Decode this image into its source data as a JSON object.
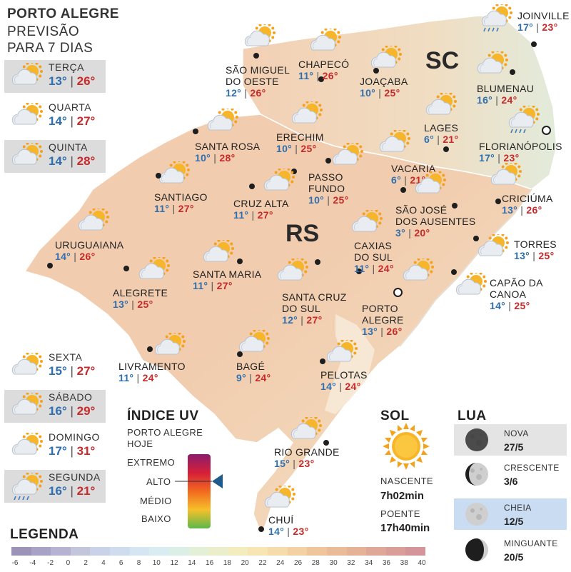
{
  "title_lines": [
    "PORTO ALEGRE",
    "PREVISÃO",
    "PARA 7 DIAS"
  ],
  "forecast": [
    {
      "day": "TERÇA",
      "min": "13°",
      "max": "26°",
      "icon": "partly-cloudy-icon"
    },
    {
      "day": "QUARTA",
      "min": "14°",
      "max": "27°",
      "icon": "partly-cloudy-icon"
    },
    {
      "day": "QUINTA",
      "min": "14°",
      "max": "28°",
      "icon": "partly-cloudy-icon"
    },
    {
      "day": "SEXTA",
      "min": "15°",
      "max": "27°",
      "icon": "partly-cloudy-icon"
    },
    {
      "day": "SÁBADO",
      "min": "16°",
      "max": "29°",
      "icon": "partly-cloudy-icon"
    },
    {
      "day": "DOMINGO",
      "min": "17°",
      "max": "31°",
      "icon": "partly-cloudy-icon"
    },
    {
      "day": "SEGUNDA",
      "min": "16°",
      "max": "21°",
      "icon": "rain-sun-icon"
    }
  ],
  "states": {
    "rs": "RS",
    "sc": "SC"
  },
  "cities": [
    {
      "name": "SÃO MIGUEL DO OESTE",
      "l1": "SÃO MIGUEL",
      "l2": "DO OESTE",
      "min": "12°",
      "max": "26°"
    },
    {
      "name": "CHAPECÓ",
      "l1": "CHAPECÓ",
      "min": "11°",
      "max": "26°"
    },
    {
      "name": "JOAÇABA",
      "l1": "JOAÇABA",
      "min": "10°",
      "max": "25°"
    },
    {
      "name": "JOINVILLE",
      "l1": "JOINVILLE",
      "min": "17°",
      "max": "23°"
    },
    {
      "name": "BLUMENAU",
      "l1": "BLUMENAU",
      "min": "16°",
      "max": "24°"
    },
    {
      "name": "LAGES",
      "l1": "LAGES",
      "min": "6°",
      "max": "21°"
    },
    {
      "name": "FLORIANÓPOLIS",
      "l1": "FLORIANÓPOLIS",
      "min": "17°",
      "max": "23°"
    },
    {
      "name": "SANTA ROSA",
      "l1": "SANTA ROSA",
      "min": "10°",
      "max": "28°"
    },
    {
      "name": "ERECHIM",
      "l1": "ERECHIM",
      "min": "10°",
      "max": "25°"
    },
    {
      "name": "VACARIA",
      "l1": "VACARIA",
      "min": "6°",
      "max": "21°"
    },
    {
      "name": "PASSO FUNDO",
      "l1": "PASSO",
      "l2": "FUNDO",
      "min": "10°",
      "max": "25°"
    },
    {
      "name": "SANTIAGO",
      "l1": "SANTIAGO",
      "min": "11°",
      "max": "27°"
    },
    {
      "name": "CRUZ ALTA",
      "l1": "CRUZ ALTA",
      "min": "11°",
      "max": "27°"
    },
    {
      "name": "CRICIÚMA",
      "l1": "CRICIÚMA",
      "min": "13°",
      "max": "26°"
    },
    {
      "name": "SÃO JOSÉ DOS AUSENTES",
      "l1": "SÃO JOSÉ",
      "l2": "DOS AUSENTES",
      "min": "3°",
      "max": "20°"
    },
    {
      "name": "URUGUAIANA",
      "l1": "URUGUAIANA",
      "min": "14°",
      "max": "26°"
    },
    {
      "name": "TORRES",
      "l1": "TORRES",
      "min": "13°",
      "max": "25°"
    },
    {
      "name": "CAXIAS DO SUL",
      "l1": "CAXIAS",
      "l2": "DO SUL",
      "min": "11°",
      "max": "24°"
    },
    {
      "name": "SANTA MARIA",
      "l1": "SANTA MARIA",
      "min": "11°",
      "max": "27°"
    },
    {
      "name": "ALEGRETE",
      "l1": "ALEGRETE",
      "min": "13°",
      "max": "25°"
    },
    {
      "name": "CAPÃO DA CANOA",
      "l1": "CAPÃO DA",
      "l2": "CANOA",
      "min": "14°",
      "max": "25°"
    },
    {
      "name": "SANTA CRUZ DO SUL",
      "l1": "SANTA CRUZ",
      "l2": "DO SUL",
      "min": "12°",
      "max": "27°"
    },
    {
      "name": "PORTO ALEGRE",
      "l1": "PORTO",
      "l2": "ALEGRE",
      "min": "13°",
      "max": "26°"
    },
    {
      "name": "LIVRAMENTO",
      "l1": "LIVRAMENTO",
      "min": "11°",
      "max": "24°"
    },
    {
      "name": "BAGÉ",
      "l1": "BAGÉ",
      "min": "9°",
      "max": "24°"
    },
    {
      "name": "PELOTAS",
      "l1": "PELOTAS",
      "min": "14°",
      "max": "24°"
    },
    {
      "name": "RIO GRANDE",
      "l1": "RIO GRANDE",
      "min": "15°",
      "max": "23°"
    },
    {
      "name": "CHUÍ",
      "l1": "CHUÍ",
      "min": "14°",
      "max": "23°"
    }
  ],
  "uv": {
    "title": "ÍNDICE UV",
    "subtitle_1": "PORTO ALEGRE",
    "subtitle_2": "HOJE",
    "levels": [
      "EXTREMO",
      "ALTO",
      "MÉDIO",
      "BAIXO"
    ],
    "current": "ALTO",
    "current_fraction": 0.78
  },
  "sun": {
    "title": "SOL",
    "sunrise_label": "NASCENTE",
    "sunrise": "7h02min",
    "sunset_label": "POENTE",
    "sunset": "17h40min"
  },
  "moon": {
    "title": "LUA",
    "phases": [
      {
        "name": "NOVA",
        "date": "27/5",
        "icon": "new-moon-icon"
      },
      {
        "name": "CRESCENTE",
        "date": "3/6",
        "icon": "crescent-moon-icon"
      },
      {
        "name": "CHEIA",
        "date": "12/5",
        "icon": "full-moon-icon",
        "current": true
      },
      {
        "name": "MINGUANTE",
        "date": "20/5",
        "icon": "waning-moon-icon"
      }
    ]
  },
  "legend": {
    "title": "LEGENDA",
    "ticks": [
      "-6",
      "-4",
      "-2",
      "0",
      "2",
      "4",
      "6",
      "8",
      "10",
      "12",
      "14",
      "16",
      "18",
      "20",
      "22",
      "24",
      "26",
      "28",
      "30",
      "32",
      "34",
      "36",
      "38",
      "40"
    ],
    "colors": [
      "#9b93b8",
      "#a7a2c6",
      "#b5b2d2",
      "#c3c5dd",
      "#c9d2e8",
      "#cfdcef",
      "#d5e5f2",
      "#d9ecf1",
      "#dcefe6",
      "#e3f0d6",
      "#ebeeca",
      "#f3ecbf",
      "#f7e5b4",
      "#f6dcab",
      "#f3d1a2",
      "#efc69c",
      "#eabb98",
      "#e5b197",
      "#dfa797",
      "#d99e98",
      "#d3959a"
    ]
  },
  "colors": {
    "min_temp": "#2f6fb0",
    "max_temp": "#c62a2a",
    "shade_box": "#dcdcdc",
    "moon_highlight": "#c9dcf2"
  }
}
